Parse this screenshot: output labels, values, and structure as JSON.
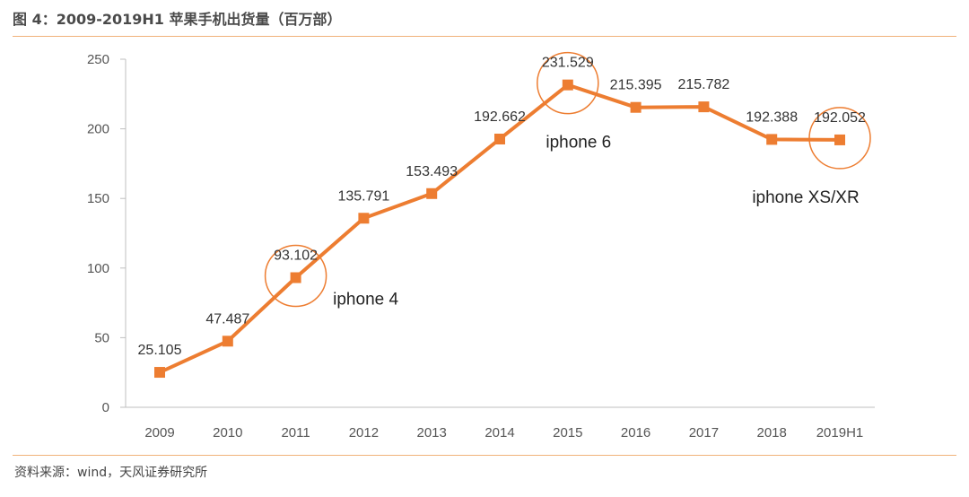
{
  "header": {
    "title": "图 4：2009-2019H1 苹果手机出货量（百万部）"
  },
  "footer": {
    "source": "资料来源：wind，天风证券研究所"
  },
  "colors": {
    "accent": "#ed7d31",
    "rule": "#f0b27a",
    "axis": "#bfbfbf"
  },
  "chart_data": {
    "type": "line",
    "title": "",
    "categories": [
      "2009",
      "2010",
      "2011",
      "2012",
      "2013",
      "2014",
      "2015",
      "2016",
      "2017",
      "2018",
      "2019H1"
    ],
    "series": [
      {
        "values": [
          25.105,
          47.487,
          93.102,
          135.791,
          153.493,
          192.662,
          231.529,
          215.395,
          215.782,
          192.388,
          192.052
        ],
        "labels": [
          "25.105",
          "47.487",
          "93.102",
          "135.791",
          "153.493",
          "192.662",
          "231.529",
          "215.395",
          "215.782",
          "192.388",
          "192.052"
        ]
      }
    ],
    "ylim": [
      0,
      250
    ],
    "yticks": [
      "0",
      "50",
      "100",
      "150",
      "200",
      "250"
    ],
    "annotations": [
      {
        "text": "iphone 4",
        "category": "2011"
      },
      {
        "text": "iphone 6",
        "category": "2015"
      },
      {
        "text": "iphone XS/XR",
        "category": "2019H1"
      }
    ],
    "grid": false,
    "legend": "none"
  }
}
